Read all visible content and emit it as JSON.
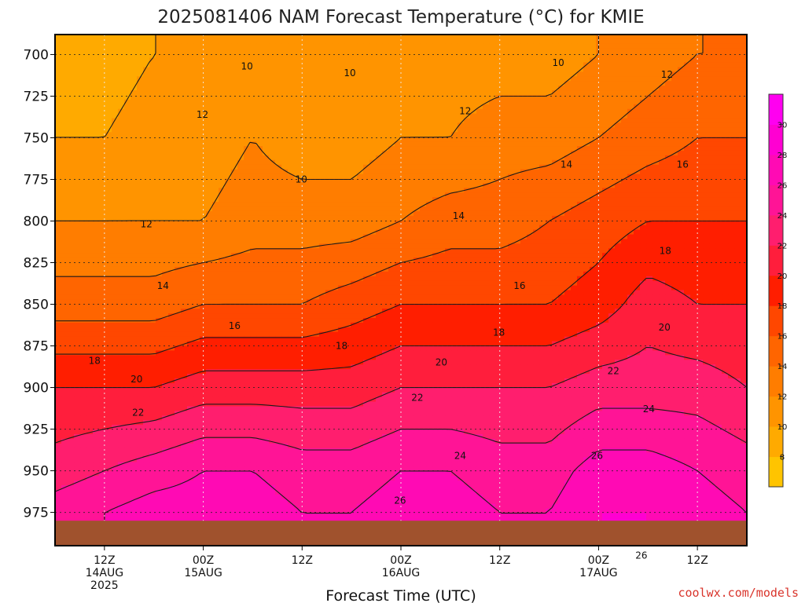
{
  "chart_data": {
    "type": "heatmap",
    "title": "2025081406 NAM Forecast Temperature (°C) for KMIE",
    "xlabel": "Forecast Time (UTC)",
    "ylabel": "",
    "y_axis": {
      "ticks": [
        700,
        725,
        750,
        775,
        800,
        825,
        850,
        875,
        900,
        925,
        950,
        975
      ],
      "inverted": true,
      "range": [
        688,
        995
      ]
    },
    "x_axis": {
      "range_hours": [
        6,
        90
      ],
      "ticks": [
        {
          "hour": 12,
          "line1": "12Z",
          "line2": "14AUG",
          "line3": "2025"
        },
        {
          "hour": 24,
          "line1": "00Z",
          "line2": "15AUG",
          "line3": ""
        },
        {
          "hour": 36,
          "line1": "12Z",
          "line2": "",
          "line3": ""
        },
        {
          "hour": 48,
          "line1": "00Z",
          "line2": "16AUG",
          "line3": ""
        },
        {
          "hour": 60,
          "line1": "12Z",
          "line2": "",
          "line3": ""
        },
        {
          "hour": 72,
          "line1": "00Z",
          "line2": "17AUG",
          "line3": ""
        },
        {
          "hour": 84,
          "line1": "12Z",
          "line2": "",
          "line3": ""
        }
      ]
    },
    "colorbar": {
      "levels": [
        8,
        10,
        12,
        14,
        16,
        18,
        20,
        22,
        24,
        26,
        28,
        30
      ],
      "colors": [
        "#ffc400",
        "#ffaa00",
        "#ff9400",
        "#ff7d00",
        "#ff6500",
        "#ff4700",
        "#ff1e00",
        "#ff1e3c",
        "#ff1e6e",
        "#ff1496",
        "#ff0ab4",
        "#ff00d2",
        "#ff00f0"
      ]
    },
    "contour_levels": [
      10,
      12,
      14,
      16,
      18,
      20,
      22,
      24,
      26
    ],
    "columns_hours": [
      6,
      12,
      18,
      24,
      30,
      36,
      42,
      48,
      54,
      60,
      66,
      72,
      78,
      84,
      90
    ],
    "columns_pressure_hpa": [
      700,
      750,
      800,
      850,
      900,
      950,
      975
    ],
    "temperature_c": [
      [
        9,
        9,
        10,
        10,
        11,
        11,
        11,
        11,
        11,
        11,
        11,
        12,
        13,
        14,
        14
      ],
      [
        10,
        10,
        11,
        11,
        12,
        11,
        11,
        12,
        12,
        13,
        13,
        14,
        15,
        16,
        16
      ],
      [
        12,
        12,
        12,
        12,
        13,
        13,
        13,
        14,
        15,
        15,
        16,
        17,
        18,
        18,
        18
      ],
      [
        15,
        15,
        15,
        16,
        16,
        16,
        17,
        18,
        18,
        18,
        18,
        19,
        21,
        20,
        20
      ],
      [
        20,
        20,
        20,
        21,
        21,
        21,
        21,
        22,
        22,
        22,
        22,
        23,
        23,
        23,
        22
      ],
      [
        23,
        24,
        25,
        26,
        26,
        25,
        25,
        26,
        26,
        25,
        25,
        27,
        27,
        26,
        25
      ],
      [
        25,
        26,
        27,
        27,
        27,
        26,
        26,
        27,
        27,
        26,
        26,
        28,
        28,
        27,
        26
      ]
    ],
    "contour_labels": [
      {
        "text": "10",
        "hour": 29.3,
        "p": 707
      },
      {
        "text": "10",
        "hour": 41.8,
        "p": 711
      },
      {
        "text": "10",
        "hour": 67.1,
        "p": 705
      },
      {
        "text": "10",
        "hour": 35.9,
        "p": 775
      },
      {
        "text": "12",
        "hour": 80.3,
        "p": 712
      },
      {
        "text": "12",
        "hour": 23.9,
        "p": 736
      },
      {
        "text": "12",
        "hour": 55.8,
        "p": 734
      },
      {
        "text": "12",
        "hour": 17.1,
        "p": 802
      },
      {
        "text": "14",
        "hour": 68.1,
        "p": 766
      },
      {
        "text": "14",
        "hour": 55.0,
        "p": 797
      },
      {
        "text": "14",
        "hour": 19.1,
        "p": 839
      },
      {
        "text": "16",
        "hour": 82.2,
        "p": 766
      },
      {
        "text": "16",
        "hour": 27.8,
        "p": 863
      },
      {
        "text": "16",
        "hour": 62.4,
        "p": 839
      },
      {
        "text": "18",
        "hour": 80.1,
        "p": 818
      },
      {
        "text": "18",
        "hour": 10.8,
        "p": 884
      },
      {
        "text": "18",
        "hour": 40.8,
        "p": 875
      },
      {
        "text": "18",
        "hour": 59.9,
        "p": 867
      },
      {
        "text": "20",
        "hour": 80.0,
        "p": 864
      },
      {
        "text": "20",
        "hour": 15.9,
        "p": 895
      },
      {
        "text": "20",
        "hour": 52.9,
        "p": 885
      },
      {
        "text": "22",
        "hour": 16.1,
        "p": 915
      },
      {
        "text": "22",
        "hour": 50.0,
        "p": 906
      },
      {
        "text": "22",
        "hour": 73.8,
        "p": 890
      },
      {
        "text": "24",
        "hour": 55.2,
        "p": 941
      },
      {
        "text": "24",
        "hour": 78.1,
        "p": 913
      },
      {
        "text": "26",
        "hour": 47.9,
        "p": 968
      },
      {
        "text": "26",
        "hour": 71.8,
        "p": 941
      },
      {
        "text": "26",
        "hour": 77.2,
        "p": 1001
      }
    ],
    "ground": {
      "color": "#a0522d",
      "p_top": 980
    }
  },
  "credit": "coolwx.com/models"
}
